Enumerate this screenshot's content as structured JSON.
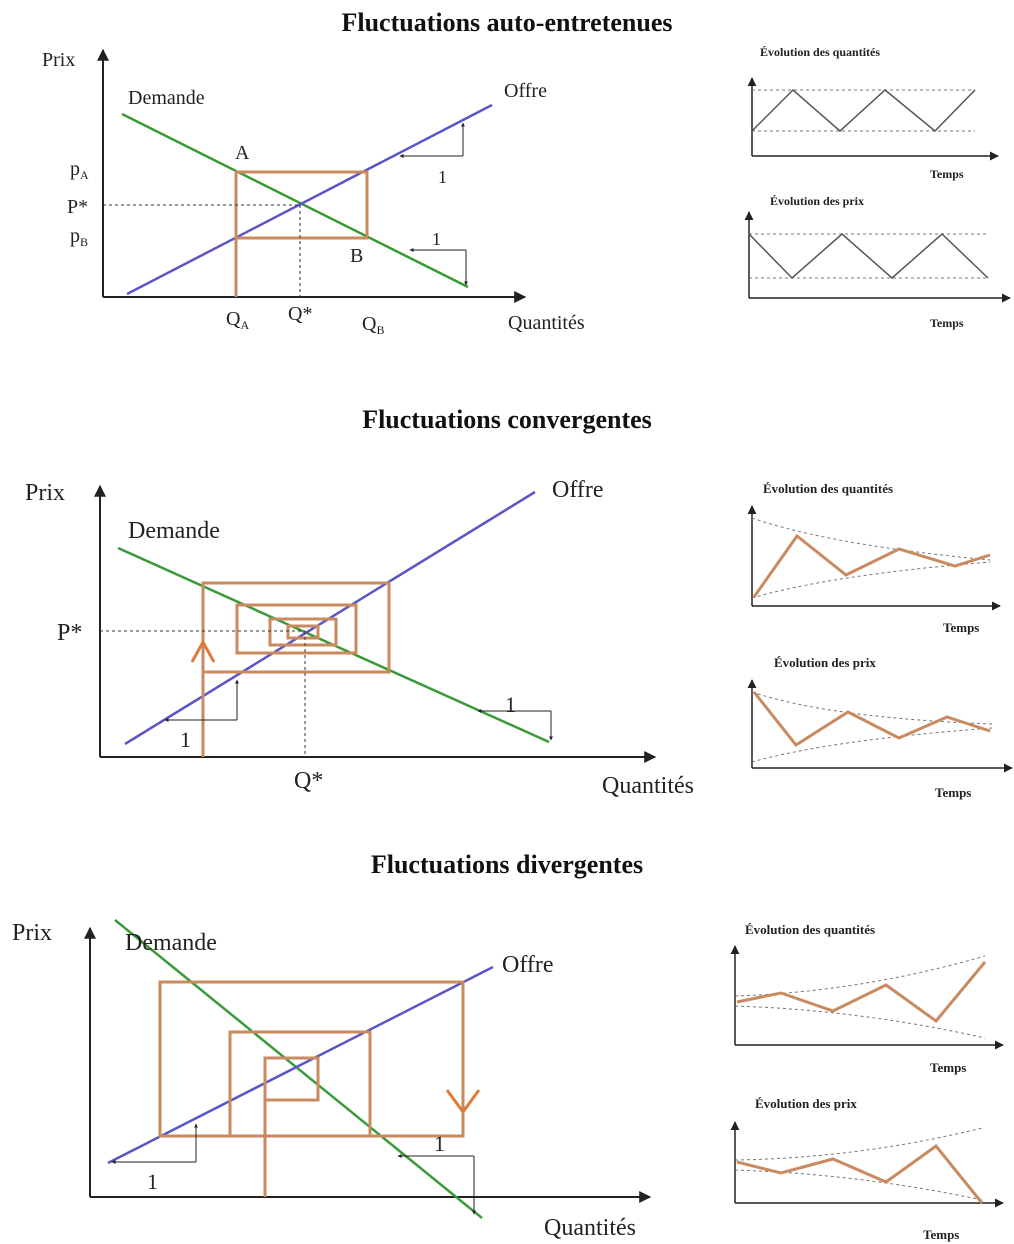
{
  "colors": {
    "demand": "#3a9a3a",
    "supply": "#5a55c8",
    "cobweb": "#c98a5f",
    "arrow": "#e07a3a",
    "axis": "#222222"
  },
  "sections": [
    {
      "title": "Fluctuations auto-entretenues",
      "y_axis_label": "Prix",
      "x_axis_label": "Quantités",
      "demand_label": "Demande",
      "supply_label": "Offre",
      "point_a": "A",
      "point_b": "B",
      "price_ticks": [
        "pA",
        "P*",
        "pB"
      ],
      "quantity_ticks": [
        "QA",
        "Q*",
        "QB"
      ],
      "slope_unit": "1",
      "mini_quantities_title": "Évolution des quantités",
      "mini_prices_title": "Évolution des prix",
      "time_label": "Temps"
    },
    {
      "title": "Fluctuations convergentes",
      "y_axis_label": "Prix",
      "x_axis_label": "Quantités",
      "demand_label": "Demande",
      "supply_label": "Offre",
      "price_ticks": [
        "P*"
      ],
      "quantity_ticks": [
        "Q*"
      ],
      "slope_unit": "1",
      "mini_quantities_title": "Évolution des quantités",
      "mini_prices_title": "Évolution des prix",
      "time_label": "Temps"
    },
    {
      "title": "Fluctuations divergentes",
      "y_axis_label": "Prix",
      "x_axis_label": "Quantités",
      "demand_label": "Demande",
      "supply_label": "Offre",
      "slope_unit": "1",
      "mini_quantities_title": "Évolution des quantités",
      "mini_prices_title": "Évolution des prix",
      "time_label": "Temps"
    }
  ]
}
